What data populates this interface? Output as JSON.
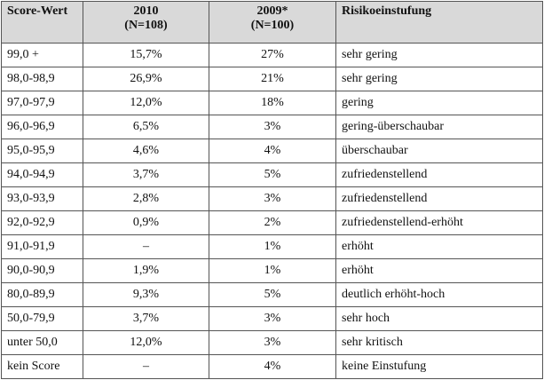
{
  "table": {
    "headers": {
      "score": "Score-Wert",
      "y2010_line1": "2010",
      "y2010_line2": "(N=108)",
      "y2009_line1": "2009*",
      "y2009_line2": "(N=100)",
      "risk": "Risikoeinstufung"
    },
    "rows": [
      {
        "score": "99,0 +",
        "v2010": "15,7%",
        "v2009": "27%",
        "risk": "sehr gering"
      },
      {
        "score": "98,0-98,9",
        "v2010": "26,9%",
        "v2009": "21%",
        "risk": "sehr gering"
      },
      {
        "score": "97,0-97,9",
        "v2010": "12,0%",
        "v2009": "18%",
        "risk": "gering"
      },
      {
        "score": "96,0-96,9",
        "v2010": "6,5%",
        "v2009": "3%",
        "risk": "gering-überschaubar"
      },
      {
        "score": "95,0-95,9",
        "v2010": "4,6%",
        "v2009": "4%",
        "risk": "überschaubar"
      },
      {
        "score": "94,0-94,9",
        "v2010": "3,7%",
        "v2009": "5%",
        "risk": "zufriedenstellend"
      },
      {
        "score": "93,0-93,9",
        "v2010": "2,8%",
        "v2009": "3%",
        "risk": "zufriedenstellend"
      },
      {
        "score": "92,0-92,9",
        "v2010": "0,9%",
        "v2009": "2%",
        "risk": "zufriedenstellend-erhöht"
      },
      {
        "score": "91,0-91,9",
        "v2010": "–",
        "v2009": "1%",
        "risk": "erhöht"
      },
      {
        "score": "90,0-90,9",
        "v2010": "1,9%",
        "v2009": "1%",
        "risk": "erhöht"
      },
      {
        "score": "80,0-89,9",
        "v2010": "9,3%",
        "v2009": "5%",
        "risk": "deutlich erhöht-hoch"
      },
      {
        "score": "50,0-79,9",
        "v2010": "3,7%",
        "v2009": "3%",
        "risk": "sehr hoch"
      },
      {
        "score": "unter 50,0",
        "v2010": "12,0%",
        "v2009": "3%",
        "risk": "sehr kritisch"
      },
      {
        "score": "kein Score",
        "v2010": "–",
        "v2009": "4%",
        "risk": "keine Einstufung"
      }
    ]
  }
}
